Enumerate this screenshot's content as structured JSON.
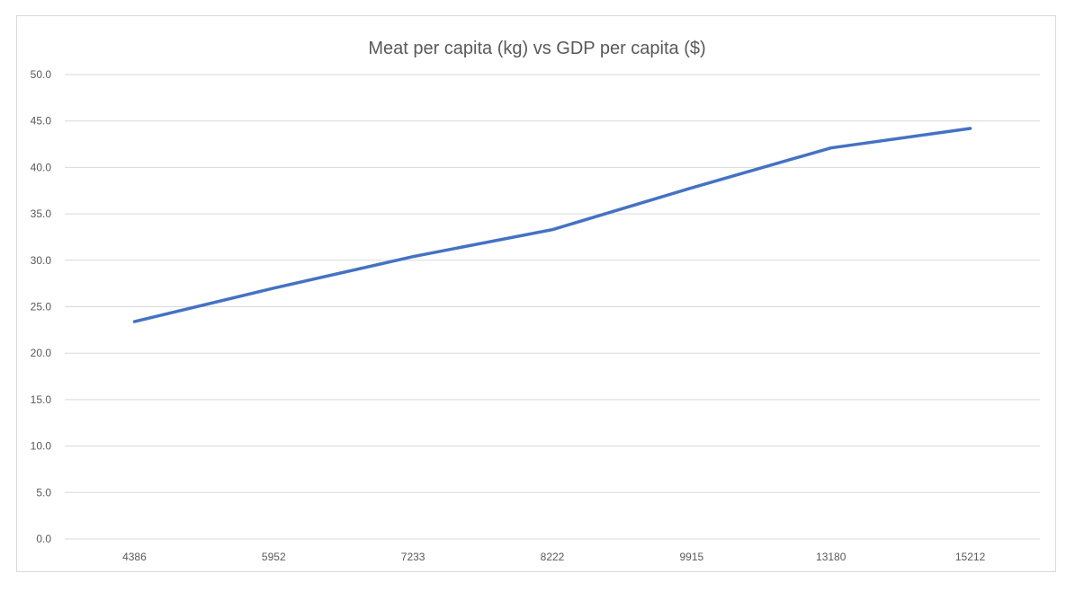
{
  "chart_data": {
    "type": "line",
    "title": "Meat per capita (kg) vs GDP per capita ($)",
    "xlabel": "",
    "ylabel": "",
    "categories": [
      "4386",
      "5952",
      "7233",
      "8222",
      "9915",
      "13180",
      "15212"
    ],
    "series": [
      {
        "values": [
          23.4,
          27.0,
          30.4,
          33.3,
          37.8,
          42.1,
          44.2
        ],
        "color": "#4472c4"
      }
    ],
    "ylim": [
      0,
      50
    ],
    "yticks": [
      "0.0",
      "5.0",
      "10.0",
      "15.0",
      "20.0",
      "25.0",
      "30.0",
      "35.0",
      "40.0",
      "45.0",
      "50.0"
    ],
    "grid": true,
    "legend": "none"
  }
}
